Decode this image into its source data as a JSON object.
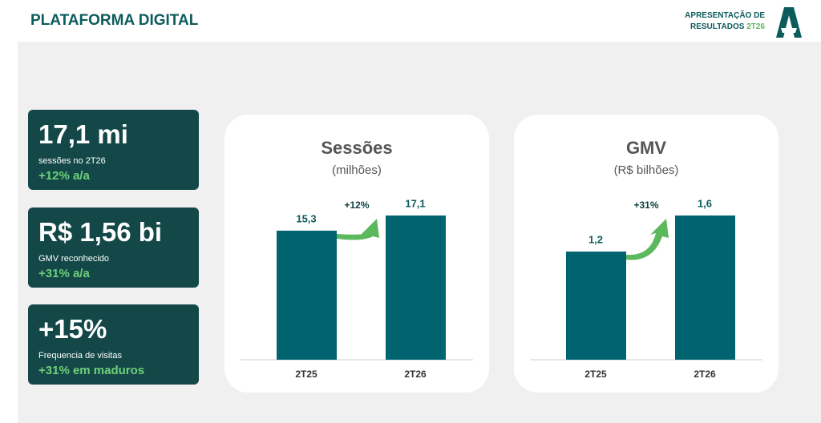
{
  "header": {
    "title": "PLATAFORMA DIGITAL",
    "report_line1": "APRESENTAÇÃO DE",
    "report_line2": "RESULTADOS",
    "report_period": "2T26"
  },
  "cards": [
    {
      "value": "17,1 mi",
      "label": "sessões no 2T26",
      "change": "+12% a/a"
    },
    {
      "value": "R$ 1,56 bi",
      "label": "GMV reconhecido",
      "change": "+31% a/a"
    },
    {
      "value": "+15%",
      "label": "Frequencia de visitas",
      "change": "+31% em maduros"
    }
  ],
  "chart_data": [
    {
      "type": "bar",
      "title": "Sessões",
      "subtitle": "(milhões)",
      "categories": [
        "2T25",
        "2T26"
      ],
      "values": [
        15.3,
        17.1
      ],
      "value_labels": [
        "15,3",
        "17,1"
      ],
      "color": "#006370",
      "annotation": "+12%"
    },
    {
      "type": "bar",
      "title": "GMV",
      "subtitle": "(R$ bilhões)",
      "categories": [
        "2T25",
        "2T26"
      ],
      "values": [
        1.2,
        1.6
      ],
      "value_labels": [
        "1,2",
        "1,6"
      ],
      "color": "#006370",
      "annotation": "+31%"
    }
  ]
}
